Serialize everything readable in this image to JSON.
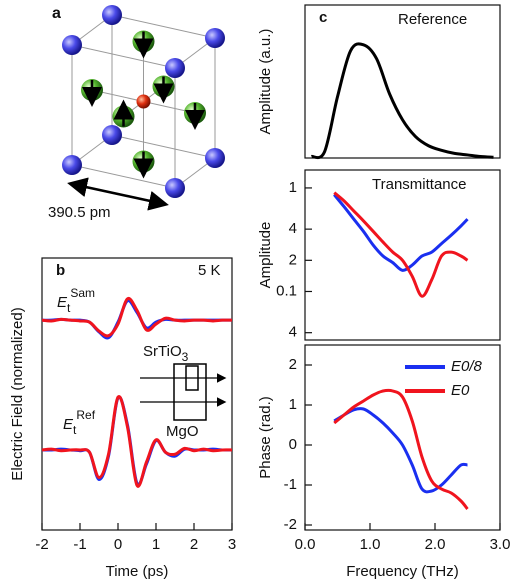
{
  "crystal": {
    "label": "a",
    "dimension": "390.5 pm"
  },
  "chart_data": [
    {
      "type": "line",
      "panel_label": "b",
      "annotation": "5 K",
      "xlabel": "Time (ps)",
      "ylabel": "Electric Field (normalized)",
      "xlim": [
        -2,
        3
      ],
      "xticks": [
        -2,
        -1,
        0,
        1,
        2,
        3
      ],
      "ylim": [
        -3.5,
        3.5
      ],
      "x": [
        -2,
        -1.75,
        -1.5,
        -1.25,
        -1,
        -0.75,
        -0.5,
        -0.25,
        0,
        0.25,
        0.5,
        0.75,
        1,
        1.25,
        1.5,
        1.75,
        2,
        2.25,
        2.5,
        2.75,
        3
      ],
      "labels": [
        {
          "main": "E",
          "sub": "t",
          "sup": "Sam"
        },
        {
          "main": "E",
          "sub": "t",
          "sup": "Ref"
        }
      ],
      "inset": {
        "top": {
          "main": "SrTiO",
          "sub": "3"
        },
        "bottom": "MgO"
      },
      "series": [
        {
          "color": "#1a2ff0",
          "values": [
            1.9,
            1.9,
            1.92,
            1.9,
            1.9,
            1.85,
            1.6,
            1.45,
            1.85,
            2.4,
            2.1,
            1.7,
            1.85,
            1.92,
            1.9,
            1.9,
            1.9,
            1.9,
            1.9,
            1.9,
            1.9
          ]
        },
        {
          "color": "#f0141e",
          "values": [
            1.9,
            1.88,
            1.92,
            1.9,
            1.88,
            1.85,
            1.62,
            1.5,
            1.8,
            2.45,
            2.15,
            1.65,
            1.8,
            1.95,
            1.9,
            1.88,
            1.9,
            1.9,
            1.88,
            1.9,
            1.9
          ]
        },
        {
          "color": "#1a2ff0",
          "values": [
            -1.44,
            -1.44,
            -1.42,
            -1.44,
            -1.46,
            -1.5,
            -2.2,
            -1.6,
            -0.1,
            -0.8,
            -2.3,
            -1.8,
            -1.2,
            -1.5,
            -1.6,
            -1.42,
            -1.44,
            -1.44,
            -1.42,
            -1.44,
            -1.44
          ]
        },
        {
          "color": "#f0141e",
          "values": [
            -1.44,
            -1.42,
            -1.46,
            -1.44,
            -1.44,
            -1.5,
            -2.15,
            -1.55,
            -0.08,
            -0.85,
            -2.35,
            -1.75,
            -1.18,
            -1.5,
            -1.55,
            -1.4,
            -1.46,
            -1.42,
            -1.46,
            -1.44,
            -1.44
          ]
        }
      ]
    },
    {
      "type": "line",
      "panel_label": "c",
      "title": "Reference",
      "ylabel": "Amplitude (a.u.)",
      "xlim": [
        0,
        3
      ],
      "ylim": [
        0,
        1
      ],
      "x": [
        0.1,
        0.3,
        0.5,
        0.7,
        0.9,
        1.1,
        1.3,
        1.5,
        1.7,
        1.9,
        2.1,
        2.3,
        2.5,
        2.7,
        2.9
      ],
      "series": [
        {
          "color": "#000000",
          "values": [
            0.01,
            0.04,
            0.4,
            0.7,
            0.74,
            0.65,
            0.42,
            0.25,
            0.14,
            0.08,
            0.05,
            0.03,
            0.02,
            0.01,
            0.005
          ]
        }
      ]
    },
    {
      "type": "line",
      "title": "Transmittance",
      "ylabel": "Amplitude",
      "log_scale": true,
      "xlim": [
        0,
        3
      ],
      "ylim": [
        0.034,
        1.49
      ],
      "yticks": [
        1,
        {
          "value": 0.4,
          "label": "4"
        },
        {
          "value": 0.2,
          "label": "2"
        },
        0.1,
        {
          "value": 0.04,
          "label": "4"
        }
      ],
      "x": [
        0.45,
        0.6,
        0.75,
        0.9,
        1.05,
        1.2,
        1.35,
        1.5,
        1.65,
        1.8,
        1.95,
        2.1,
        2.25,
        2.4,
        2.5
      ],
      "series": [
        {
          "color": "#1a2ff0",
          "values": [
            0.86,
            0.66,
            0.5,
            0.38,
            0.28,
            0.22,
            0.19,
            0.16,
            0.18,
            0.22,
            0.24,
            0.29,
            0.35,
            0.43,
            0.5
          ]
        },
        {
          "color": "#f0141e",
          "values": [
            0.9,
            0.75,
            0.6,
            0.48,
            0.38,
            0.3,
            0.24,
            0.2,
            0.14,
            0.09,
            0.13,
            0.22,
            0.24,
            0.22,
            0.2
          ]
        }
      ]
    },
    {
      "type": "line",
      "ylabel": "Phase (rad.)",
      "xlabel": "Frequency (THz)",
      "legend": "upper right",
      "xlim": [
        0,
        3
      ],
      "xticks": [
        {
          "value": 0,
          "label": "0.0"
        },
        {
          "value": 1,
          "label": "1.0"
        },
        {
          "value": 2,
          "label": "2.0"
        },
        {
          "value": 3,
          "label": "3.0"
        }
      ],
      "ylim": [
        -2.125,
        2.5
      ],
      "yticks": [
        2,
        1,
        0,
        -1,
        -2
      ],
      "x": [
        0.45,
        0.6,
        0.75,
        0.9,
        1.05,
        1.2,
        1.35,
        1.5,
        1.65,
        1.8,
        1.95,
        2.1,
        2.25,
        2.4,
        2.5
      ],
      "series": [
        {
          "name": "E0/8",
          "color": "#1a2ff0",
          "values": [
            0.6,
            0.75,
            0.88,
            0.9,
            0.75,
            0.55,
            0.3,
            0.0,
            -0.5,
            -1.1,
            -1.15,
            -1.0,
            -0.75,
            -0.5,
            -0.5
          ]
        },
        {
          "name": "E0",
          "color": "#f0141e",
          "values": [
            0.55,
            0.75,
            0.95,
            1.1,
            1.25,
            1.35,
            1.35,
            1.2,
            0.6,
            -0.3,
            -0.9,
            -1.1,
            -1.2,
            -1.4,
            -1.6
          ]
        }
      ]
    }
  ]
}
